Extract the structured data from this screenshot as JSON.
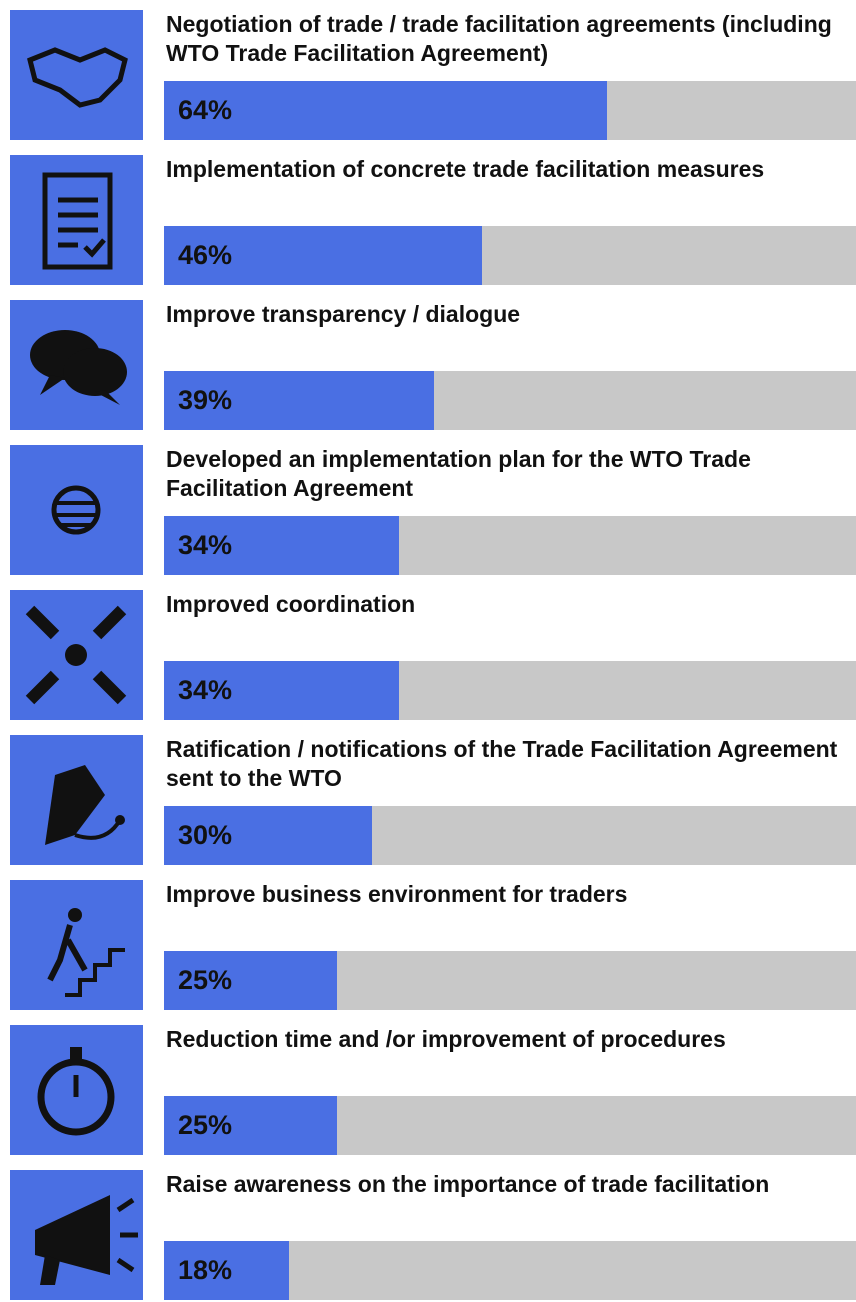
{
  "chart_data": {
    "type": "bar",
    "orientation": "horizontal",
    "categories": [
      "Negotiation of trade / trade facilitation agreements (including WTO Trade Facilitation Agreement)",
      "Implementation of concrete trade facilitation measures",
      "Improve transparency / dialogue",
      "Developed an implementation plan for the WTO Trade Facilitation Agreement",
      "Improved coordination",
      "Ratification / notifications of the Trade Facilitation Agreement sent to the WTO",
      "Improve business environment for traders",
      "Reduction time and /or improvement of procedures",
      "Raise awareness on the importance of trade facilitation"
    ],
    "values": [
      64,
      46,
      39,
      34,
      34,
      30,
      25,
      25,
      18
    ],
    "value_labels": [
      "64%",
      "46%",
      "39%",
      "34%",
      "34%",
      "30%",
      "25%",
      "25%",
      "18%"
    ],
    "color": "#4a6fe3",
    "track_color": "#c8c8c8",
    "xlim": [
      0,
      100
    ]
  }
}
